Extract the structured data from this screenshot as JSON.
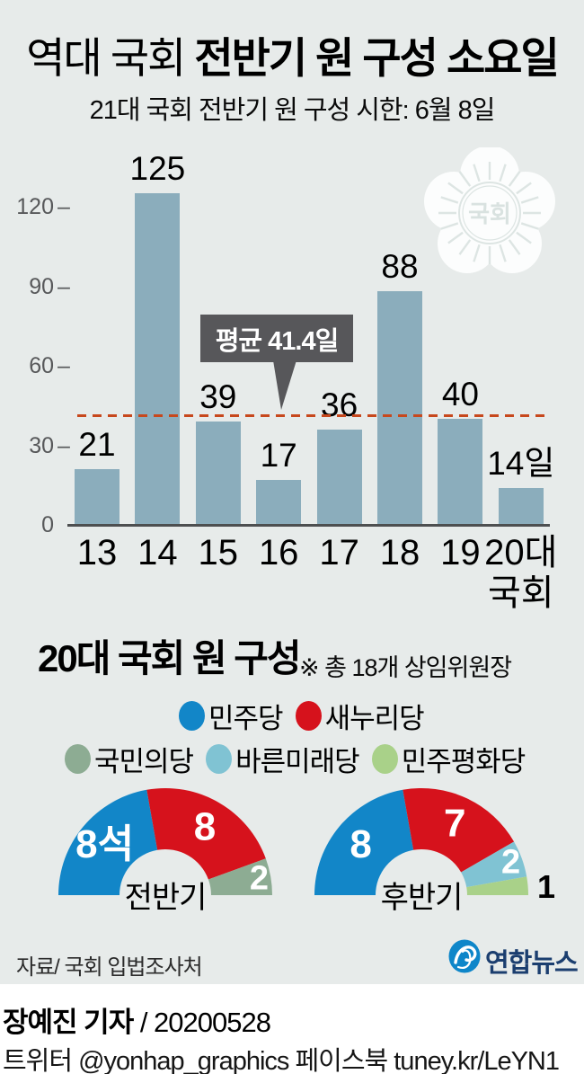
{
  "title": {
    "light": "역대 국회 ",
    "bold": "전반기 원 구성 소요일"
  },
  "subtitle": "21대 국회 전반기 원 구성 시한: 6월 8일",
  "watermark_text": "국회",
  "chart_data": {
    "type": "bar",
    "title": "역대 국회 전반기 원 구성 소요일",
    "categories": [
      "13",
      "14",
      "15",
      "16",
      "17",
      "18",
      "19",
      "20대\n국회"
    ],
    "values": [
      21,
      125,
      39,
      17,
      36,
      88,
      40,
      14
    ],
    "value_labels": [
      "21",
      "125",
      "39",
      "17",
      "36",
      "88",
      "40",
      "14일"
    ],
    "unit": "일",
    "yticks": [
      0,
      30,
      60,
      90,
      120
    ],
    "ylim": [
      0,
      135
    ],
    "grid": false,
    "legend_position": "none",
    "average": 41.4,
    "average_label": "평균 41.4일",
    "bar_color": "#8badbc",
    "avg_line_color": "#c7481d"
  },
  "section2": {
    "title": "20대 국회 원 구성",
    "note": "※ 총 18개 상임위원장",
    "total_seats": 18,
    "legend": [
      {
        "label": "민주당",
        "color": "#1286c8"
      },
      {
        "label": "새누리당",
        "color": "#d6121c"
      },
      {
        "label": "국민의당",
        "color": "#8dac93"
      },
      {
        "label": "바른미래당",
        "color": "#80c3d3"
      },
      {
        "label": "민주평화당",
        "color": "#a9d189"
      }
    ],
    "donuts": [
      {
        "label": "전반기",
        "slices": [
          {
            "party": "민주당",
            "value": 8,
            "text": "8석",
            "color": "#1286c8"
          },
          {
            "party": "새누리당",
            "value": 8,
            "text": "8",
            "color": "#d6121c"
          },
          {
            "party": "국민의당",
            "value": 2,
            "text": "2",
            "color": "#8dac93"
          }
        ]
      },
      {
        "label": "후반기",
        "slices": [
          {
            "party": "민주당",
            "value": 8,
            "text": "8",
            "color": "#1286c8"
          },
          {
            "party": "새누리당",
            "value": 7,
            "text": "7",
            "color": "#d6121c"
          },
          {
            "party": "바른미래당",
            "value": 2,
            "text": "2",
            "color": "#80c3d3"
          },
          {
            "party": "민주평화당",
            "value": 1,
            "text": "1",
            "color": "#a9d189",
            "label_outside": true
          }
        ]
      }
    ]
  },
  "footer": {
    "source": "자료/ 국회 입법조사처",
    "brand": "연합뉴스",
    "credit_name": "장예진 기자",
    "credit_rest": " / 20200528",
    "social": "트위터 @yonhap_graphics  페이스북 tuney.kr/LeYN1"
  }
}
